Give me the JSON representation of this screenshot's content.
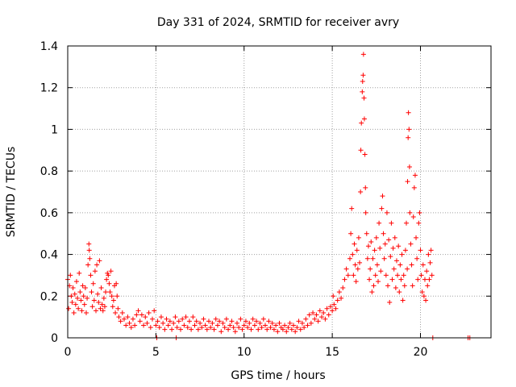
{
  "chart_data": {
    "type": "scatter",
    "title": "Day 331 of 2024, SRMTID for receiver avry",
    "xlabel": "GPS time / hours",
    "ylabel": "SRMTID / TECUs",
    "xlim": [
      0,
      24
    ],
    "ylim": [
      0,
      1.4
    ],
    "xticks": [
      0,
      5,
      10,
      15,
      20
    ],
    "xtick_labels": [
      "0",
      "5",
      "10",
      "15",
      "20"
    ],
    "yticks": [
      0,
      0.2,
      0.4,
      0.6,
      0.8,
      1.0,
      1.2,
      1.4
    ],
    "ytick_labels": [
      "0",
      "0.2",
      "0.4",
      "0.6",
      "0.8",
      "1",
      "1.2",
      "1.4"
    ],
    "grid": true,
    "marker": "+",
    "color": "#ff0000",
    "series": [
      {
        "name": "SRMTID",
        "points": [
          [
            0.0,
            0.28
          ],
          [
            0.05,
            0.14
          ],
          [
            0.1,
            0.25
          ],
          [
            0.15,
            0.3
          ],
          [
            0.2,
            0.2
          ],
          [
            0.25,
            0.17
          ],
          [
            0.3,
            0.24
          ],
          [
            0.35,
            0.12
          ],
          [
            0.4,
            0.21
          ],
          [
            0.45,
            0.16
          ],
          [
            0.5,
            0.27
          ],
          [
            0.55,
            0.19
          ],
          [
            0.6,
            0.14
          ],
          [
            0.65,
            0.31
          ],
          [
            0.7,
            0.22
          ],
          [
            0.75,
            0.18
          ],
          [
            0.8,
            0.13
          ],
          [
            0.85,
            0.25
          ],
          [
            0.9,
            0.2
          ],
          [
            0.95,
            0.16
          ],
          [
            1.0,
            0.24
          ],
          [
            1.05,
            0.12
          ],
          [
            1.1,
            0.19
          ],
          [
            1.15,
            0.35
          ],
          [
            1.2,
            0.45
          ],
          [
            1.22,
            0.42
          ],
          [
            1.25,
            0.38
          ],
          [
            1.3,
            0.3
          ],
          [
            1.35,
            0.22
          ],
          [
            1.4,
            0.15
          ],
          [
            1.45,
            0.26
          ],
          [
            1.5,
            0.18
          ],
          [
            1.55,
            0.32
          ],
          [
            1.6,
            0.13
          ],
          [
            1.65,
            0.35
          ],
          [
            1.7,
            0.21
          ],
          [
            1.75,
            0.17
          ],
          [
            1.8,
            0.37
          ],
          [
            1.85,
            0.14
          ],
          [
            1.9,
            0.24
          ],
          [
            1.95,
            0.16
          ],
          [
            2.0,
            0.13
          ],
          [
            2.05,
            0.19
          ],
          [
            2.1,
            0.15
          ],
          [
            2.15,
            0.22
          ],
          [
            2.2,
            0.28
          ],
          [
            2.25,
            0.31
          ],
          [
            2.3,
            0.3
          ],
          [
            2.35,
            0.26
          ],
          [
            2.4,
            0.22
          ],
          [
            2.45,
            0.32
          ],
          [
            2.5,
            0.2
          ],
          [
            2.55,
            0.15
          ],
          [
            2.6,
            0.18
          ],
          [
            2.65,
            0.25
          ],
          [
            2.7,
            0.12
          ],
          [
            2.75,
            0.26
          ],
          [
            2.8,
            0.2
          ],
          [
            2.85,
            0.14
          ],
          [
            2.9,
            0.1
          ],
          [
            3.0,
            0.08
          ],
          [
            3.1,
            0.12
          ],
          [
            3.2,
            0.09
          ],
          [
            3.3,
            0.06
          ],
          [
            3.4,
            0.1
          ],
          [
            3.5,
            0.07
          ],
          [
            3.6,
            0.05
          ],
          [
            3.7,
            0.09
          ],
          [
            3.8,
            0.06
          ],
          [
            3.9,
            0.11
          ],
          [
            4.0,
            0.13
          ],
          [
            4.1,
            0.08
          ],
          [
            4.2,
            0.11
          ],
          [
            4.3,
            0.06
          ],
          [
            4.4,
            0.1
          ],
          [
            4.5,
            0.07
          ],
          [
            4.6,
            0.12
          ],
          [
            4.7,
            0.05
          ],
          [
            4.8,
            0.09
          ],
          [
            4.9,
            0.13
          ],
          [
            5.0,
            0.06
          ],
          [
            5.05,
            0.0
          ],
          [
            5.1,
            0.08
          ],
          [
            5.2,
            0.05
          ],
          [
            5.3,
            0.1
          ],
          [
            5.4,
            0.07
          ],
          [
            5.5,
            0.04
          ],
          [
            5.6,
            0.09
          ],
          [
            5.7,
            0.06
          ],
          [
            5.8,
            0.08
          ],
          [
            5.9,
            0.04
          ],
          [
            6.0,
            0.07
          ],
          [
            6.1,
            0.1
          ],
          [
            6.15,
            0.0
          ],
          [
            6.2,
            0.05
          ],
          [
            6.3,
            0.08
          ],
          [
            6.4,
            0.04
          ],
          [
            6.5,
            0.09
          ],
          [
            6.6,
            0.06
          ],
          [
            6.7,
            0.1
          ],
          [
            6.8,
            0.05
          ],
          [
            6.9,
            0.08
          ],
          [
            7.0,
            0.04
          ],
          [
            7.1,
            0.1
          ],
          [
            7.2,
            0.06
          ],
          [
            7.3,
            0.08
          ],
          [
            7.4,
            0.04
          ],
          [
            7.5,
            0.07
          ],
          [
            7.6,
            0.05
          ],
          [
            7.7,
            0.09
          ],
          [
            7.8,
            0.06
          ],
          [
            7.9,
            0.04
          ],
          [
            8.0,
            0.08
          ],
          [
            8.1,
            0.05
          ],
          [
            8.2,
            0.07
          ],
          [
            8.3,
            0.04
          ],
          [
            8.4,
            0.09
          ],
          [
            8.5,
            0.06
          ],
          [
            8.6,
            0.08
          ],
          [
            8.7,
            0.03
          ],
          [
            8.8,
            0.07
          ],
          [
            8.9,
            0.05
          ],
          [
            9.0,
            0.09
          ],
          [
            9.1,
            0.04
          ],
          [
            9.2,
            0.06
          ],
          [
            9.3,
            0.08
          ],
          [
            9.4,
            0.05
          ],
          [
            9.5,
            0.03
          ],
          [
            9.6,
            0.07
          ],
          [
            9.7,
            0.05
          ],
          [
            9.8,
            0.09
          ],
          [
            9.9,
            0.04
          ],
          [
            10.0,
            0.06
          ],
          [
            10.1,
            0.08
          ],
          [
            10.2,
            0.05
          ],
          [
            10.3,
            0.07
          ],
          [
            10.4,
            0.04
          ],
          [
            10.5,
            0.09
          ],
          [
            10.6,
            0.06
          ],
          [
            10.7,
            0.08
          ],
          [
            10.8,
            0.04
          ],
          [
            10.9,
            0.07
          ],
          [
            11.0,
            0.05
          ],
          [
            11.1,
            0.09
          ],
          [
            11.2,
            0.06
          ],
          [
            11.3,
            0.04
          ],
          [
            11.4,
            0.08
          ],
          [
            11.5,
            0.05
          ],
          [
            11.6,
            0.07
          ],
          [
            11.7,
            0.04
          ],
          [
            11.8,
            0.06
          ],
          [
            11.9,
            0.03
          ],
          [
            12.0,
            0.07
          ],
          [
            12.1,
            0.05
          ],
          [
            12.2,
            0.04
          ],
          [
            12.3,
            0.06
          ],
          [
            12.4,
            0.03
          ],
          [
            12.5,
            0.05
          ],
          [
            12.6,
            0.07
          ],
          [
            12.7,
            0.04
          ],
          [
            12.8,
            0.06
          ],
          [
            12.9,
            0.03
          ],
          [
            13.0,
            0.05
          ],
          [
            13.1,
            0.08
          ],
          [
            13.2,
            0.04
          ],
          [
            13.3,
            0.07
          ],
          [
            13.4,
            0.05
          ],
          [
            13.5,
            0.09
          ],
          [
            13.6,
            0.06
          ],
          [
            13.7,
            0.11
          ],
          [
            13.8,
            0.07
          ],
          [
            13.9,
            0.12
          ],
          [
            14.0,
            0.09
          ],
          [
            14.1,
            0.11
          ],
          [
            14.2,
            0.08
          ],
          [
            14.3,
            0.13
          ],
          [
            14.4,
            0.1
          ],
          [
            14.5,
            0.12
          ],
          [
            14.6,
            0.09
          ],
          [
            14.7,
            0.14
          ],
          [
            14.8,
            0.11
          ],
          [
            14.9,
            0.15
          ],
          [
            15.0,
            0.13
          ],
          [
            15.05,
            0.2
          ],
          [
            15.1,
            0.16
          ],
          [
            15.2,
            0.14
          ],
          [
            15.3,
            0.18
          ],
          [
            15.4,
            0.22
          ],
          [
            15.5,
            0.19
          ],
          [
            15.6,
            0.24
          ],
          [
            15.7,
            0.28
          ],
          [
            15.8,
            0.33
          ],
          [
            15.9,
            0.3
          ],
          [
            16.0,
            0.38
          ],
          [
            16.05,
            0.5
          ],
          [
            16.1,
            0.62
          ],
          [
            16.15,
            0.4
          ],
          [
            16.2,
            0.3
          ],
          [
            16.25,
            0.45
          ],
          [
            16.3,
            0.35
          ],
          [
            16.35,
            0.27
          ],
          [
            16.4,
            0.42
          ],
          [
            16.45,
            0.33
          ],
          [
            16.5,
            0.48
          ],
          [
            16.55,
            0.36
          ],
          [
            16.6,
            0.7
          ],
          [
            16.62,
            0.9
          ],
          [
            16.65,
            1.03
          ],
          [
            16.7,
            1.18
          ],
          [
            16.72,
            1.23
          ],
          [
            16.75,
            1.26
          ],
          [
            16.77,
            1.36
          ],
          [
            16.8,
            1.15
          ],
          [
            16.82,
            1.05
          ],
          [
            16.85,
            0.88
          ],
          [
            16.88,
            0.72
          ],
          [
            16.9,
            0.6
          ],
          [
            16.95,
            0.5
          ],
          [
            17.0,
            0.38
          ],
          [
            17.05,
            0.44
          ],
          [
            17.1,
            0.28
          ],
          [
            17.15,
            0.33
          ],
          [
            17.2,
            0.46
          ],
          [
            17.25,
            0.22
          ],
          [
            17.3,
            0.38
          ],
          [
            17.35,
            0.25
          ],
          [
            17.4,
            0.42
          ],
          [
            17.45,
            0.3
          ],
          [
            17.5,
            0.48
          ],
          [
            17.55,
            0.35
          ],
          [
            17.6,
            0.27
          ],
          [
            17.65,
            0.55
          ],
          [
            17.7,
            0.43
          ],
          [
            17.75,
            0.32
          ],
          [
            17.8,
            0.62
          ],
          [
            17.85,
            0.68
          ],
          [
            17.9,
            0.5
          ],
          [
            17.95,
            0.38
          ],
          [
            18.0,
            0.45
          ],
          [
            18.05,
            0.3
          ],
          [
            18.1,
            0.6
          ],
          [
            18.15,
            0.25
          ],
          [
            18.2,
            0.47
          ],
          [
            18.25,
            0.17
          ],
          [
            18.3,
            0.39
          ],
          [
            18.35,
            0.55
          ],
          [
            18.4,
            0.28
          ],
          [
            18.45,
            0.43
          ],
          [
            18.5,
            0.33
          ],
          [
            18.55,
            0.48
          ],
          [
            18.6,
            0.24
          ],
          [
            18.65,
            0.37
          ],
          [
            18.7,
            0.3
          ],
          [
            18.75,
            0.44
          ],
          [
            18.8,
            0.22
          ],
          [
            18.85,
            0.35
          ],
          [
            18.9,
            0.28
          ],
          [
            18.95,
            0.4
          ],
          [
            19.0,
            0.18
          ],
          [
            19.05,
            0.3
          ],
          [
            19.1,
            0.25
          ],
          [
            19.15,
            0.42
          ],
          [
            19.2,
            0.55
          ],
          [
            19.25,
            0.33
          ],
          [
            19.27,
            0.75
          ],
          [
            19.3,
            0.96
          ],
          [
            19.32,
            1.08
          ],
          [
            19.35,
            1.0
          ],
          [
            19.38,
            0.82
          ],
          [
            19.4,
            0.6
          ],
          [
            19.45,
            0.45
          ],
          [
            19.5,
            0.35
          ],
          [
            19.55,
            0.25
          ],
          [
            19.6,
            0.58
          ],
          [
            19.65,
            0.72
          ],
          [
            19.7,
            0.78
          ],
          [
            19.75,
            0.48
          ],
          [
            19.8,
            0.38
          ],
          [
            19.85,
            0.28
          ],
          [
            19.9,
            0.55
          ],
          [
            19.95,
            0.6
          ],
          [
            20.0,
            0.42
          ],
          [
            20.05,
            0.3
          ],
          [
            20.1,
            0.22
          ],
          [
            20.15,
            0.35
          ],
          [
            20.2,
            0.2
          ],
          [
            20.25,
            0.28
          ],
          [
            20.3,
            0.18
          ],
          [
            20.35,
            0.32
          ],
          [
            20.4,
            0.25
          ],
          [
            20.45,
            0.4
          ],
          [
            20.5,
            0.28
          ],
          [
            20.55,
            0.36
          ],
          [
            20.6,
            0.42
          ],
          [
            20.65,
            0.3
          ],
          [
            20.7,
            0.0
          ],
          [
            22.7,
            0.0
          ],
          [
            22.8,
            0.0
          ]
        ]
      }
    ]
  }
}
